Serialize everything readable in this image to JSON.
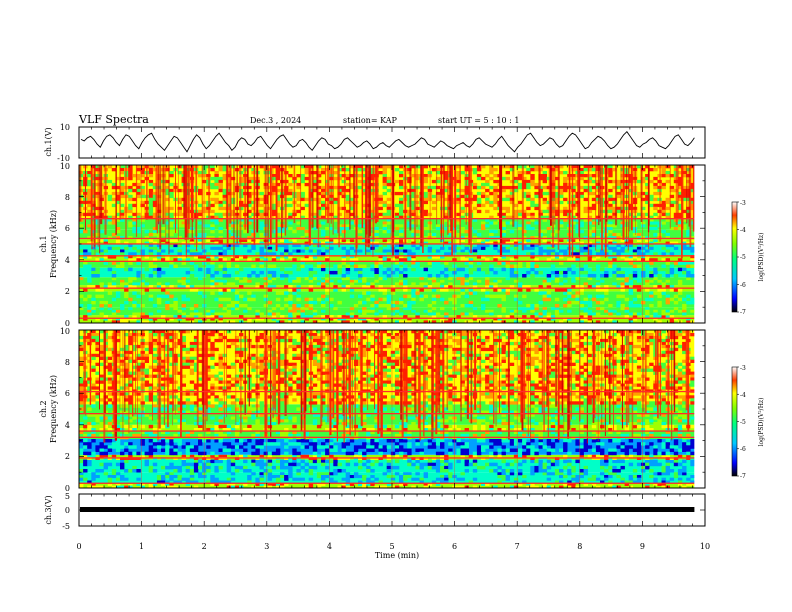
{
  "header": {
    "title": "VLF Spectra",
    "date": "Dec.3 , 2024",
    "station": "station= KAP",
    "start": "start  UT =  5 : 10 : 1"
  },
  "chart_data": [
    {
      "type": "line",
      "name": "ch1-waveform",
      "ylabel": "ch.1(V)",
      "ylim": [
        -10,
        10
      ],
      "y_tick_labels": [
        "10",
        "-10"
      ],
      "xlim": [
        0,
        10
      ],
      "x_end": 9.83,
      "samples": [
        2,
        1,
        3,
        4,
        2,
        -1,
        -3,
        1,
        4,
        5,
        3,
        0,
        -2,
        2,
        5,
        4,
        1,
        -2,
        -4,
        0,
        3,
        5,
        6,
        2,
        -1,
        -3,
        -5,
        -2,
        1,
        4,
        3,
        0,
        -3,
        -6,
        -2,
        2,
        5,
        3,
        -1,
        -4,
        -2,
        1,
        4,
        6,
        3,
        0,
        -2,
        -5,
        -3,
        1,
        3,
        2,
        -1,
        -2,
        0,
        3,
        4,
        1,
        -2,
        -4,
        -1,
        2,
        4,
        5,
        2,
        -1,
        -3,
        -2,
        1,
        2,
        0,
        -3,
        -5,
        -2,
        1,
        3,
        2,
        -1,
        -2,
        -4,
        -3,
        -1,
        2,
        3,
        1,
        -1,
        -3,
        -2,
        0,
        1,
        -1,
        -4,
        -3,
        -1,
        0,
        -2,
        -3,
        -1,
        1,
        2,
        0,
        -2,
        -3,
        -2,
        -1,
        1,
        3,
        2,
        -1,
        -2,
        -3,
        -1,
        1,
        0,
        -2,
        -3,
        -4,
        -2,
        -1,
        0,
        -2,
        -3,
        -1,
        2,
        3,
        1,
        -1,
        -2,
        -3,
        -1,
        2,
        4,
        1,
        -2,
        -4,
        -6,
        -3,
        -1,
        2,
        5,
        6,
        3,
        0,
        -2,
        -1,
        1,
        3,
        2,
        -1,
        -3,
        -2,
        1,
        4,
        6,
        5,
        2,
        -1,
        -4,
        -3,
        0,
        2,
        4,
        3,
        1,
        -2,
        -4,
        -3,
        -1,
        2,
        5,
        7,
        4,
        1,
        -2,
        -3,
        -1,
        0,
        2,
        3,
        1,
        -2,
        -3,
        -4,
        -2,
        1,
        4,
        5,
        2,
        -1,
        -2,
        0,
        3
      ]
    },
    {
      "type": "heatmap",
      "name": "ch1-spectrogram",
      "ylabel_top": "ch.1",
      "ylabel": "Frequency (kHz)",
      "ylim": [
        0,
        10
      ],
      "y_tick_labels": [
        "0",
        "2",
        "4",
        "6",
        "8",
        "10"
      ],
      "xlim": [
        0,
        10
      ],
      "x_end": 9.83,
      "frequency_bands_khz": [
        {
          "from": 0.0,
          "to": 0.5,
          "level": 3
        },
        {
          "from": 0.5,
          "to": 1.0,
          "level": 2
        },
        {
          "from": 1.0,
          "to": 2.0,
          "level": 2
        },
        {
          "from": 2.0,
          "to": 2.4,
          "level": 3
        },
        {
          "from": 2.4,
          "to": 2.9,
          "level": 2
        },
        {
          "from": 2.9,
          "to": 3.5,
          "level": 1
        },
        {
          "from": 3.5,
          "to": 3.9,
          "level": 2
        },
        {
          "from": 3.9,
          "to": 4.3,
          "level": 3
        },
        {
          "from": 4.3,
          "to": 5.0,
          "level": 1
        },
        {
          "from": 5.0,
          "to": 5.3,
          "level": 3
        },
        {
          "from": 5.3,
          "to": 5.9,
          "level": 2
        },
        {
          "from": 5.9,
          "to": 6.6,
          "level": 2
        },
        {
          "from": 6.6,
          "to": 10.0,
          "level": 4
        }
      ],
      "tone_lines_khz": [
        0.3,
        2.2,
        3.9,
        4.25,
        5.0,
        5.35,
        6.6
      ],
      "colorbar": {
        "min": -7,
        "max": -3,
        "tick_labels": [
          "-3",
          "-4",
          "-5",
          "-6",
          "-7"
        ],
        "label": "log(PSD)(V²/Hz)"
      }
    },
    {
      "type": "heatmap",
      "name": "ch2-spectrogram",
      "ylabel_top": "ch.2",
      "ylabel": "Frequency (kHz)",
      "ylim": [
        0,
        10
      ],
      "y_tick_labels": [
        "0",
        "2",
        "4",
        "6",
        "8",
        "10"
      ],
      "xlim": [
        0,
        10
      ],
      "x_end": 9.83,
      "frequency_bands_khz": [
        {
          "from": 0.0,
          "to": 0.3,
          "level": 3
        },
        {
          "from": 0.3,
          "to": 1.0,
          "level": 1
        },
        {
          "from": 1.0,
          "to": 1.8,
          "level": 1
        },
        {
          "from": 1.8,
          "to": 2.1,
          "level": 3
        },
        {
          "from": 2.1,
          "to": 3.1,
          "level": 0
        },
        {
          "from": 3.1,
          "to": 3.6,
          "level": 2
        },
        {
          "from": 3.6,
          "to": 4.0,
          "level": 3
        },
        {
          "from": 4.0,
          "to": 4.7,
          "level": 2
        },
        {
          "from": 4.7,
          "to": 5.3,
          "level": 2
        },
        {
          "from": 5.3,
          "to": 10.0,
          "level": 4
        }
      ],
      "tone_lines_khz": [
        0.3,
        1.9,
        3.2,
        3.6,
        4.7,
        6.1
      ],
      "colorbar": {
        "min": -7,
        "max": -3,
        "tick_labels": [
          "-3",
          "-4",
          "-5",
          "-6",
          "-7"
        ],
        "label": "log(PSD)(V²/Hz)"
      }
    },
    {
      "type": "line",
      "name": "ch3-waveform",
      "ylabel": "ch.3(V)",
      "ylim": [
        -5,
        5
      ],
      "y_tick_labels": [
        "5",
        "0",
        "-5"
      ],
      "xlim": [
        0,
        10
      ],
      "x_end": 9.83,
      "value": 0,
      "xlabel": "Time (min)",
      "x_tick_labels": [
        "0",
        "1",
        "2",
        "3",
        "4",
        "5",
        "6",
        "7",
        "8",
        "9",
        "10"
      ]
    }
  ],
  "colors": {
    "palette": [
      "#0000d0",
      "#00a0ff",
      "#00ffc8",
      "#40ff40",
      "#a0ff00",
      "#ffff00",
      "#ffa000",
      "#ff2000",
      "#d00000"
    ],
    "tone": "#ff2a2a"
  }
}
